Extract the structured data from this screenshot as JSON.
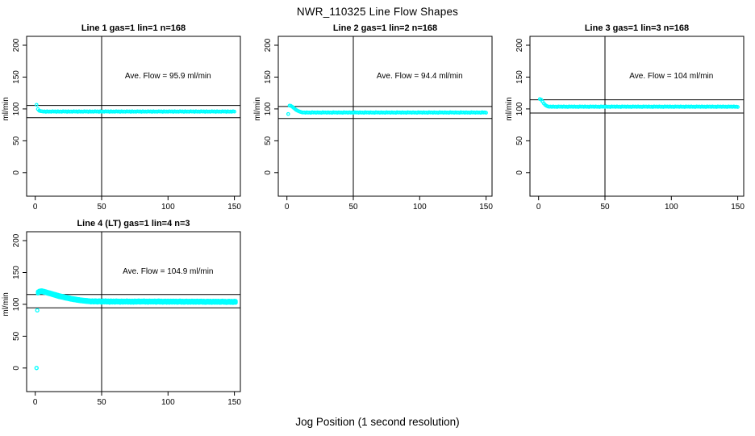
{
  "figure": {
    "title": "NWR_110325  Line Flow Shapes",
    "xlabel": "Jog Position (1 second resolution)"
  },
  "chart_data": {
    "type": "scatter",
    "title": "NWR_110325  Line Flow Shapes",
    "xlabel": "Jog Position (1 second resolution)",
    "ylabel": "ml/min",
    "point_color": "#00ffff",
    "axis_color": "#000000",
    "grid": false,
    "legend": "none",
    "x_ticks": [
      0,
      50,
      100,
      150
    ],
    "y_ticks": [
      0,
      50,
      100,
      150,
      200
    ],
    "xlim": [
      -6.5,
      154.5
    ],
    "ylim": [
      -37,
      214
    ],
    "panels": [
      {
        "title": "Line 1 gas=1 lin=1 n=168",
        "n": 168,
        "gas": 1,
        "lin": 1,
        "ave_flow": 95.9,
        "annotation": "Ave. Flow =  95.9  ml/min",
        "vline_x": 50,
        "hlines": [
          105.5,
          86.3
        ],
        "runs": 1,
        "x_start": 1,
        "x_step": 1,
        "outliers": [],
        "y": [
          106.5,
          99.8,
          97.2,
          96.6,
          96.4,
          95.8,
          96.1,
          95.5,
          96.2,
          95.7,
          96.0,
          95.6,
          96.4,
          95.8,
          96.1,
          95.5,
          96.2,
          95.7,
          96.0,
          95.6,
          96.4,
          95.8,
          96.1,
          95.5,
          96.2,
          95.7,
          96.0,
          95.6,
          96.4,
          95.8,
          96.1,
          95.5,
          96.2,
          95.7,
          96.0,
          95.6,
          96.4,
          95.8,
          96.1,
          95.5,
          96.2,
          95.7,
          96.0,
          95.6,
          96.4,
          95.8,
          96.1,
          95.5,
          96.2,
          95.7,
          96.0,
          95.6,
          96.4,
          95.8,
          96.1,
          95.5,
          96.2,
          95.7,
          96.0,
          95.6,
          96.4,
          95.8,
          96.1,
          95.5,
          96.2,
          95.7,
          96.0,
          95.6,
          96.4,
          95.8,
          96.1,
          95.5,
          96.2,
          95.7,
          96.0,
          95.6,
          96.4,
          95.8,
          96.1,
          95.5,
          96.2,
          95.7,
          96.0,
          95.6,
          96.4,
          95.8,
          96.1,
          95.5,
          96.2,
          95.7,
          96.0,
          95.6,
          96.4,
          95.8,
          96.1,
          95.5,
          96.2,
          95.7,
          96.0,
          95.6,
          96.4,
          95.8,
          96.1,
          95.5,
          96.2,
          95.7,
          96.0,
          95.6,
          96.4,
          95.8,
          96.1,
          95.5,
          96.2,
          95.7,
          96.0,
          95.6,
          96.4,
          95.8,
          96.1,
          95.5,
          96.2,
          95.7,
          96.0,
          95.6,
          96.4,
          95.8,
          96.1,
          95.5,
          96.2,
          95.7,
          96.0,
          95.6,
          96.4,
          95.8,
          96.1,
          95.5,
          96.2,
          95.7,
          96.0,
          95.6,
          96.4,
          95.8,
          96.1,
          95.5,
          96.2,
          95.7,
          96.0,
          95.6,
          96.4,
          95.8
        ]
      },
      {
        "title": "Line 2 gas=1 lin=2 n=168",
        "n": 168,
        "gas": 1,
        "lin": 2,
        "ave_flow": 94.4,
        "annotation": "Ave. Flow =  94.4  ml/min",
        "vline_x": 50,
        "hlines": [
          103.8,
          85.0
        ],
        "runs": 1,
        "x_start": 1,
        "x_step": 1,
        "outliers": [],
        "y": [
          92.0,
          105.2,
          104.8,
          103.5,
          101.8,
          100.0,
          98.4,
          97.2,
          96.2,
          95.5,
          94.8,
          94.3,
          94.6,
          94.1,
          94.7,
          94.2,
          94.5,
          94.0,
          94.8,
          94.3,
          94.6,
          94.1,
          94.7,
          94.2,
          94.5,
          94.0,
          94.8,
          94.3,
          94.6,
          94.1,
          94.7,
          94.2,
          94.5,
          94.0,
          94.8,
          94.3,
          94.6,
          94.1,
          94.7,
          94.2,
          94.5,
          94.0,
          94.8,
          94.3,
          94.6,
          94.1,
          94.7,
          94.2,
          94.5,
          94.0,
          94.8,
          94.3,
          94.6,
          94.1,
          94.7,
          94.2,
          94.5,
          94.0,
          94.8,
          94.3,
          94.6,
          94.1,
          94.7,
          94.2,
          94.5,
          94.0,
          94.8,
          94.3,
          94.6,
          94.1,
          94.7,
          94.2,
          94.5,
          94.0,
          94.8,
          94.3,
          94.6,
          94.1,
          94.7,
          94.2,
          94.5,
          94.0,
          94.8,
          94.3,
          94.6,
          94.1,
          94.7,
          94.2,
          94.5,
          94.0,
          94.8,
          94.3,
          94.6,
          94.1,
          94.7,
          94.2,
          94.5,
          94.0,
          94.8,
          94.3,
          94.6,
          94.1,
          94.7,
          94.2,
          94.5,
          94.0,
          94.8,
          94.3,
          94.6,
          94.1,
          94.7,
          94.2,
          94.5,
          94.0,
          94.8,
          94.3,
          94.6,
          94.1,
          94.7,
          94.2,
          94.5,
          94.0,
          94.8,
          94.3,
          94.6,
          94.1,
          94.7,
          94.2,
          94.5,
          94.0,
          94.8,
          94.3,
          94.6,
          94.1,
          94.7,
          94.2,
          94.5,
          94.0,
          94.8,
          94.3,
          94.6,
          94.1,
          94.7,
          94.2,
          94.5,
          94.0,
          94.8,
          94.3,
          94.6,
          94.1
        ]
      },
      {
        "title": "Line 3 gas=1 lin=3 n=168",
        "n": 168,
        "gas": 1,
        "lin": 3,
        "ave_flow": 104,
        "annotation": "Ave. Flow =  104  ml/min",
        "vline_x": 50,
        "hlines": [
          114.4,
          93.6
        ],
        "runs": 1,
        "x_start": 1,
        "x_step": 1,
        "outliers": [],
        "y": [
          115.5,
          114.5,
          111.5,
          108.5,
          106.3,
          104.8,
          103.9,
          103.4,
          103.7,
          103.2,
          103.8,
          103.3,
          103.6,
          103.1,
          103.9,
          103.4,
          103.7,
          103.2,
          103.8,
          103.3,
          103.6,
          103.1,
          103.9,
          103.4,
          103.7,
          103.2,
          103.8,
          103.3,
          103.6,
          103.1,
          103.9,
          103.4,
          103.7,
          103.2,
          103.8,
          103.3,
          103.6,
          103.1,
          103.9,
          103.4,
          103.7,
          103.2,
          103.8,
          103.3,
          103.6,
          103.1,
          103.9,
          103.4,
          103.7,
          103.2,
          103.8,
          103.3,
          103.6,
          103.1,
          103.9,
          103.4,
          103.7,
          103.2,
          103.8,
          103.3,
          103.6,
          103.1,
          103.9,
          103.4,
          103.7,
          103.2,
          103.8,
          103.3,
          103.6,
          103.1,
          103.9,
          103.4,
          103.7,
          103.2,
          103.8,
          103.3,
          103.6,
          103.1,
          103.9,
          103.4,
          103.7,
          103.2,
          103.8,
          103.3,
          103.6,
          103.1,
          103.9,
          103.4,
          103.7,
          103.2,
          103.8,
          103.3,
          103.6,
          103.1,
          103.9,
          103.4,
          103.7,
          103.2,
          103.8,
          103.3,
          103.6,
          103.1,
          103.9,
          103.4,
          103.7,
          103.2,
          103.8,
          103.3,
          103.6,
          103.1,
          103.9,
          103.4,
          103.7,
          103.2,
          103.8,
          103.3,
          103.6,
          103.1,
          103.9,
          103.4,
          103.7,
          103.2,
          103.8,
          103.3,
          103.6,
          103.1,
          103.9,
          103.4,
          103.7,
          103.2,
          103.8,
          103.3,
          103.6,
          103.1,
          103.9,
          103.4,
          103.7,
          103.2,
          103.8,
          103.3,
          103.6,
          103.1,
          103.9,
          103.4,
          103.7,
          103.2,
          103.8,
          103.3,
          103.6,
          103.1
        ]
      },
      {
        "title": "Line 4 (LT) gas=1 lin=4 n=3",
        "n": 3,
        "gas": 1,
        "lin": 4,
        "ave_flow": 104.9,
        "annotation": "Ave. Flow =  104.9  ml/min",
        "vline_x": 50,
        "hlines": [
          115.4,
          94.4
        ],
        "runs": 3,
        "x_start": 2,
        "x_step": 1,
        "outliers": [
          [
            1,
            0.0
          ],
          [
            1.5,
            90.5
          ]
        ],
        "y": [
          118.5,
          119.8,
          120.3,
          120.4,
          120.0,
          119.5,
          118.9,
          118.3,
          117.7,
          117.1,
          116.5,
          115.9,
          115.3,
          114.7,
          114.1,
          113.5,
          112.9,
          112.4,
          111.9,
          111.4,
          110.9,
          110.4,
          110.0,
          109.5,
          109.1,
          108.7,
          108.3,
          107.9,
          107.6,
          107.2,
          106.9,
          106.6,
          106.3,
          106.1,
          105.8,
          105.6,
          105.4,
          105.2,
          105.0,
          104.9,
          104.4,
          104.8,
          104.3,
          104.7,
          104.6,
          104.2,
          104.8,
          104.5,
          104.1,
          104.6,
          104.3,
          104.7,
          104.2,
          104.5,
          104.0,
          104.6,
          104.2,
          104.5,
          104.1,
          104.6,
          104.3,
          104.4,
          104.0,
          104.5,
          104.1,
          104.4,
          104.2,
          104.6,
          104.1,
          104.4,
          104.0,
          104.4,
          104.0,
          104.5,
          104.1,
          104.3,
          104.6,
          104.1,
          104.3,
          104.3,
          104.6,
          104.1,
          104.4,
          104.0,
          104.5,
          104.2,
          104.4,
          104.2,
          104.5,
          104.0,
          104.3,
          104.6,
          104.1,
          104.3,
          103.9,
          104.2,
          104.4,
          104.0,
          104.3,
          103.9,
          104.4,
          104.1,
          104.3,
          104.1,
          104.4,
          103.9,
          104.2,
          104.5,
          104.0,
          104.2,
          103.8,
          104.1,
          104.3,
          103.9,
          104.2,
          103.8,
          104.3,
          104.0,
          104.2,
          104.0,
          104.3,
          103.8,
          104.1,
          104.4,
          103.9,
          104.1,
          103.7,
          104.0,
          104.2,
          103.8,
          104.1,
          103.7,
          104.2,
          103.9,
          104.1,
          103.9,
          104.2,
          103.7,
          104.0,
          104.3,
          103.8,
          104.0,
          103.6,
          103.9,
          104.1,
          103.7,
          104.0,
          103.6,
          104.1,
          103.8
        ]
      }
    ]
  }
}
